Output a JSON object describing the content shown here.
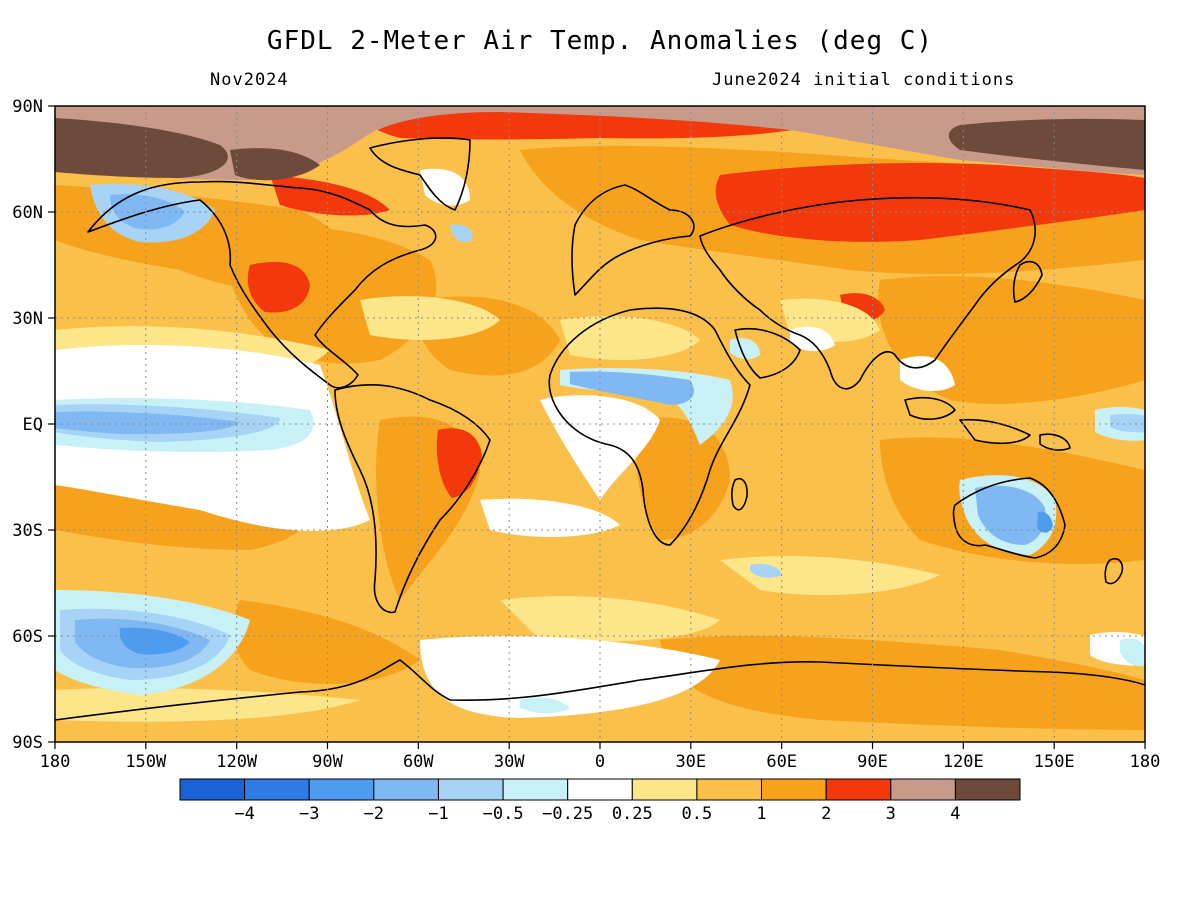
{
  "header": {
    "title": "GFDL 2-Meter Air Temp. Anomalies (deg C)",
    "period": "Nov2024",
    "initial_conditions": "June2024 initial conditions"
  },
  "map": {
    "projection": "equirectangular",
    "lat_labels": [
      "90N",
      "60N",
      "30N",
      "EQ",
      "30S",
      "60S",
      "90S"
    ],
    "lon_labels": [
      "180",
      "150W",
      "120W",
      "90W",
      "60W",
      "30W",
      "0",
      "30E",
      "60E",
      "90E",
      "120E",
      "150E",
      "180"
    ],
    "grid": "dotted"
  },
  "colorbar": {
    "colors": [
      "#1a62d4",
      "#2e7be6",
      "#4d9cf0",
      "#7fb8f3",
      "#a6d3f6",
      "#c8f0f7",
      "#ffffff",
      "#fde58a",
      "#fbc04a",
      "#f7a21c",
      "#f3380b",
      "#c79a8a",
      "#6e4a3a"
    ],
    "labels": [
      "−4",
      "−3",
      "−2",
      "−1",
      "−0.5",
      "−0.25",
      "0.25",
      "0.5",
      "1",
      "2",
      "3",
      "4"
    ]
  }
}
